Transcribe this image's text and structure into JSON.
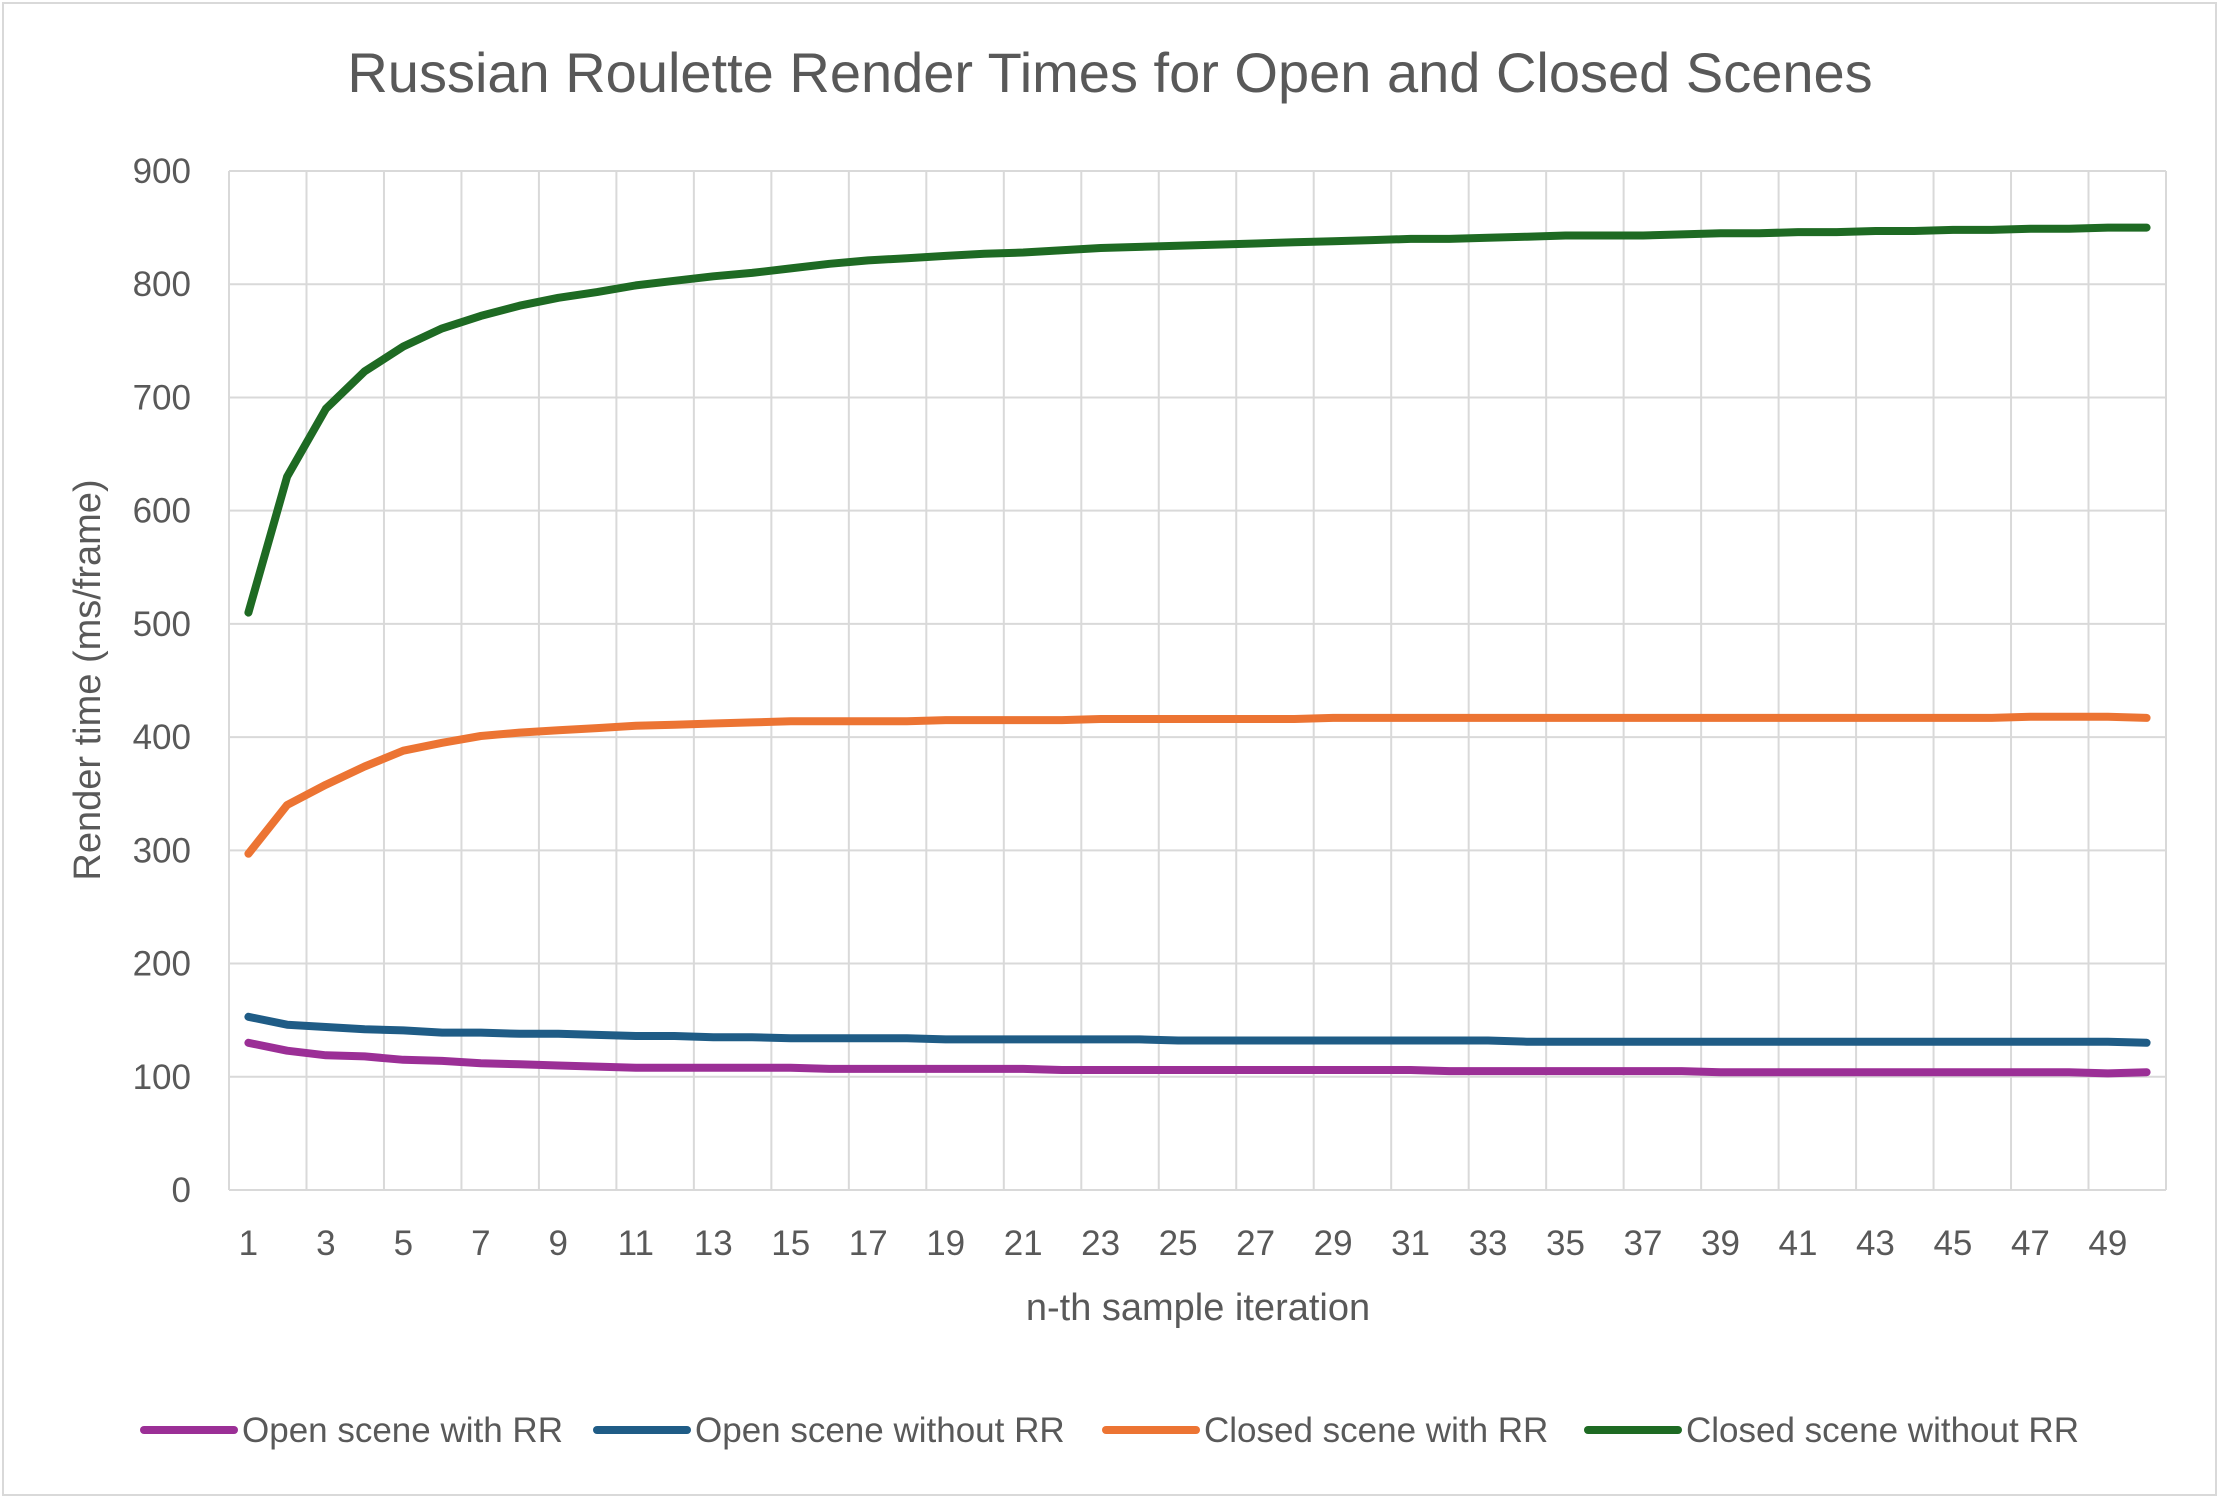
{
  "chart_data": {
    "type": "line",
    "title": "Russian Roulette Render Times for Open and Closed Scenes",
    "xlabel": "n-th sample iteration",
    "ylabel": "Render time (ms/frame)",
    "ylim": [
      0,
      900
    ],
    "yticks": [
      0,
      100,
      200,
      300,
      400,
      500,
      600,
      700,
      800,
      900
    ],
    "x": [
      1,
      2,
      3,
      4,
      5,
      6,
      7,
      8,
      9,
      10,
      11,
      12,
      13,
      14,
      15,
      16,
      17,
      18,
      19,
      20,
      21,
      22,
      23,
      24,
      25,
      26,
      27,
      28,
      29,
      30,
      31,
      32,
      33,
      34,
      35,
      36,
      37,
      38,
      39,
      40,
      41,
      42,
      43,
      44,
      45,
      46,
      47,
      48,
      49,
      50
    ],
    "xtick_labels": [
      "1",
      "3",
      "5",
      "7",
      "9",
      "11",
      "13",
      "15",
      "17",
      "19",
      "21",
      "23",
      "25",
      "27",
      "29",
      "31",
      "33",
      "35",
      "37",
      "39",
      "41",
      "43",
      "45",
      "47",
      "49"
    ],
    "grid": true,
    "legend_position": "bottom",
    "series": [
      {
        "name": "Open scene with RR",
        "color": "#9b2f96",
        "values": [
          130,
          123,
          119,
          118,
          115,
          114,
          112,
          111,
          110,
          109,
          108,
          108,
          108,
          108,
          108,
          107,
          107,
          107,
          107,
          107,
          107,
          106,
          106,
          106,
          106,
          106,
          106,
          106,
          106,
          106,
          106,
          105,
          105,
          105,
          105,
          105,
          105,
          105,
          104,
          104,
          104,
          104,
          104,
          104,
          104,
          104,
          104,
          104,
          103,
          104
        ]
      },
      {
        "name": "Open scene without RR",
        "color": "#1f5c86",
        "values": [
          153,
          146,
          144,
          142,
          141,
          139,
          139,
          138,
          138,
          137,
          136,
          136,
          135,
          135,
          134,
          134,
          134,
          134,
          133,
          133,
          133,
          133,
          133,
          133,
          132,
          132,
          132,
          132,
          132,
          132,
          132,
          132,
          132,
          131,
          131,
          131,
          131,
          131,
          131,
          131,
          131,
          131,
          131,
          131,
          131,
          131,
          131,
          131,
          131,
          130
        ]
      },
      {
        "name": "Closed scene with RR",
        "color": "#ec7433",
        "values": [
          297,
          340,
          358,
          374,
          388,
          395,
          401,
          404,
          406,
          408,
          410,
          411,
          412,
          413,
          414,
          414,
          414,
          414,
          415,
          415,
          415,
          415,
          416,
          416,
          416,
          416,
          416,
          416,
          417,
          417,
          417,
          417,
          417,
          417,
          417,
          417,
          417,
          417,
          417,
          417,
          417,
          417,
          417,
          417,
          417,
          417,
          418,
          418,
          418,
          417
        ]
      },
      {
        "name": "Closed scene without RR",
        "color": "#1e6a23",
        "values": [
          510,
          630,
          690,
          723,
          745,
          761,
          772,
          781,
          788,
          793,
          799,
          803,
          807,
          810,
          814,
          818,
          821,
          823,
          825,
          827,
          828,
          830,
          832,
          833,
          834,
          835,
          836,
          837,
          838,
          839,
          840,
          840,
          841,
          842,
          843,
          843,
          843,
          844,
          845,
          845,
          846,
          846,
          847,
          847,
          848,
          848,
          849,
          849,
          850,
          850
        ]
      }
    ]
  }
}
